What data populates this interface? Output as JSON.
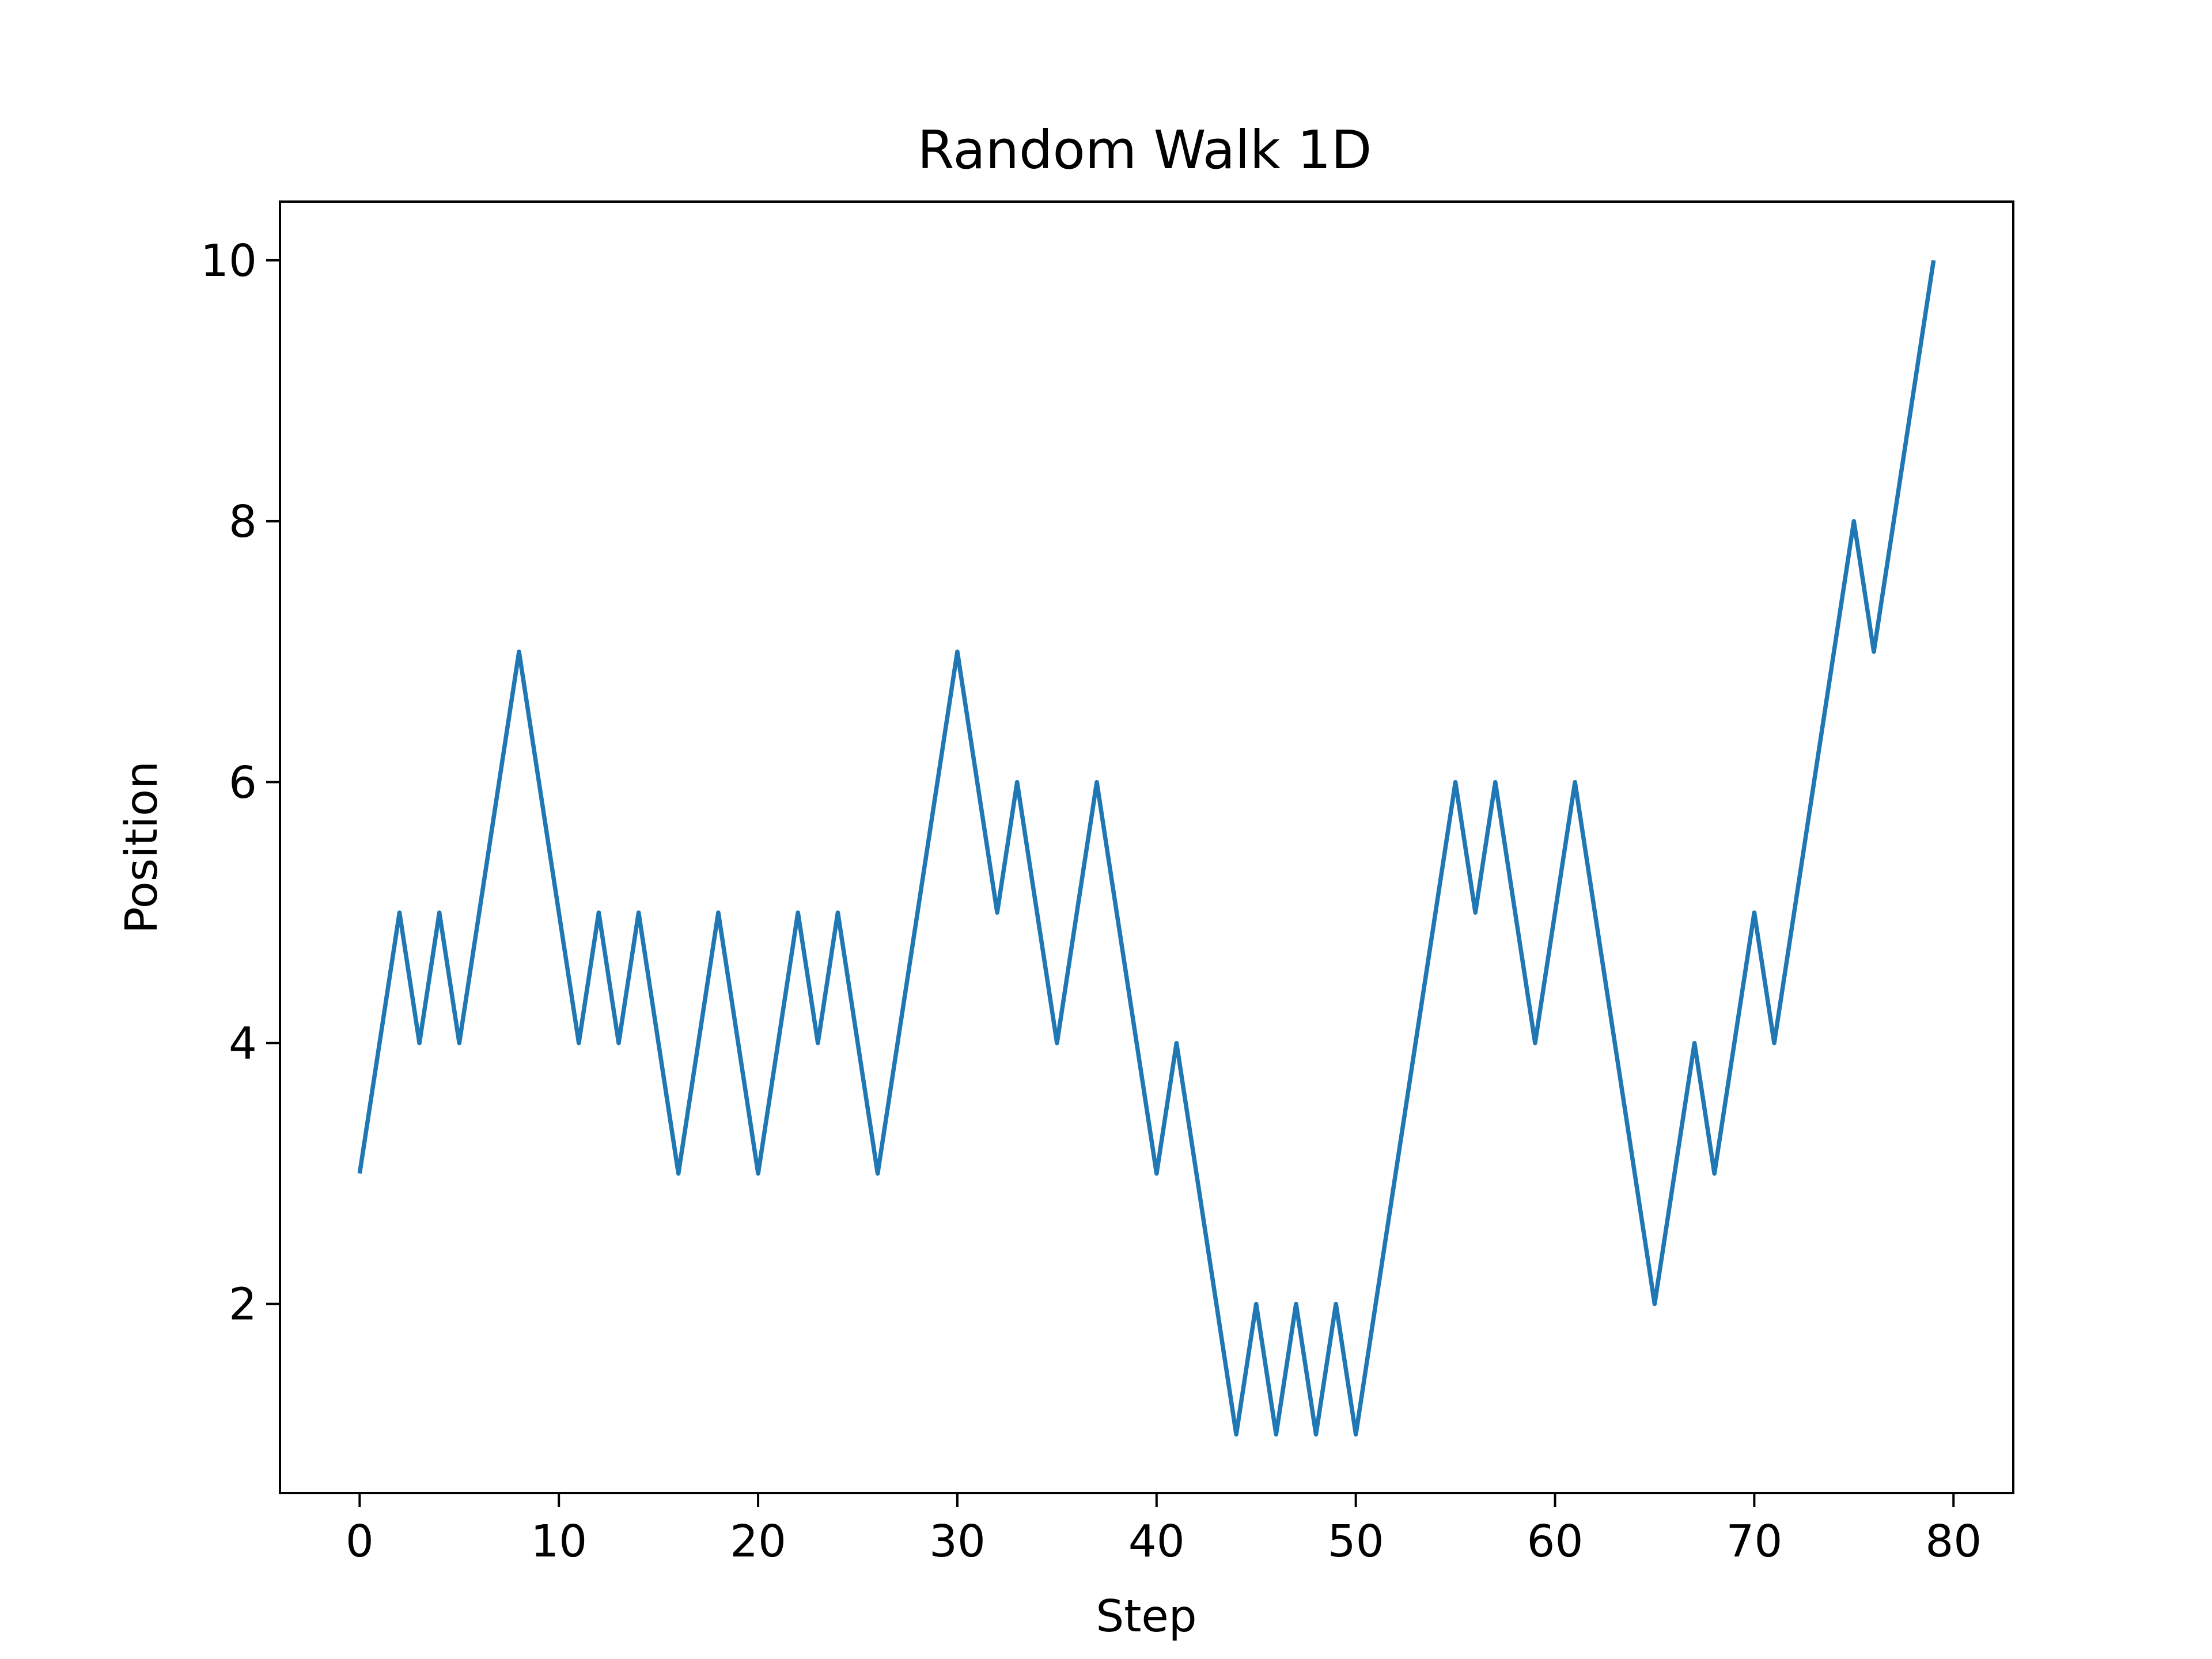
{
  "chart_data": {
    "type": "line",
    "title": "Random Walk 1D",
    "xlabel": "Step",
    "ylabel": "Position",
    "xlim": [
      -4,
      83
    ],
    "ylim": [
      0.55,
      10.45
    ],
    "x_ticks": [
      0,
      10,
      20,
      30,
      40,
      50,
      60,
      70,
      80
    ],
    "y_ticks": [
      2,
      4,
      6,
      8,
      10
    ],
    "grid": false,
    "legend": "none",
    "series": [
      {
        "color": "#1f77b4",
        "x": [
          0,
          1,
          2,
          3,
          4,
          5,
          6,
          7,
          8,
          9,
          10,
          11,
          12,
          13,
          14,
          15,
          16,
          17,
          18,
          19,
          20,
          21,
          22,
          23,
          24,
          25,
          26,
          27,
          28,
          29,
          30,
          31,
          32,
          33,
          34,
          35,
          36,
          37,
          38,
          39,
          40,
          41,
          42,
          43,
          44,
          45,
          46,
          47,
          48,
          49,
          50,
          51,
          52,
          53,
          54,
          55,
          56,
          57,
          58,
          59,
          60,
          61,
          62,
          63,
          64,
          65,
          66,
          67,
          68,
          69,
          70,
          71,
          72,
          73,
          74,
          75,
          76,
          77,
          78,
          79
        ],
        "values": [
          3,
          4,
          5,
          4,
          5,
          4,
          5,
          6,
          7,
          6,
          5,
          4,
          5,
          4,
          5,
          4,
          3,
          4,
          5,
          4,
          3,
          4,
          5,
          4,
          5,
          4,
          3,
          4,
          5,
          6,
          7,
          6,
          5,
          6,
          5,
          4,
          5,
          6,
          5,
          4,
          3,
          4,
          3,
          2,
          1,
          2,
          1,
          2,
          1,
          2,
          1,
          2,
          3,
          4,
          5,
          6,
          5,
          6,
          5,
          4,
          5,
          6,
          5,
          4,
          3,
          2,
          3,
          4,
          3,
          4,
          5,
          4,
          5,
          6,
          7,
          8,
          7,
          8,
          9,
          10
        ]
      }
    ]
  }
}
